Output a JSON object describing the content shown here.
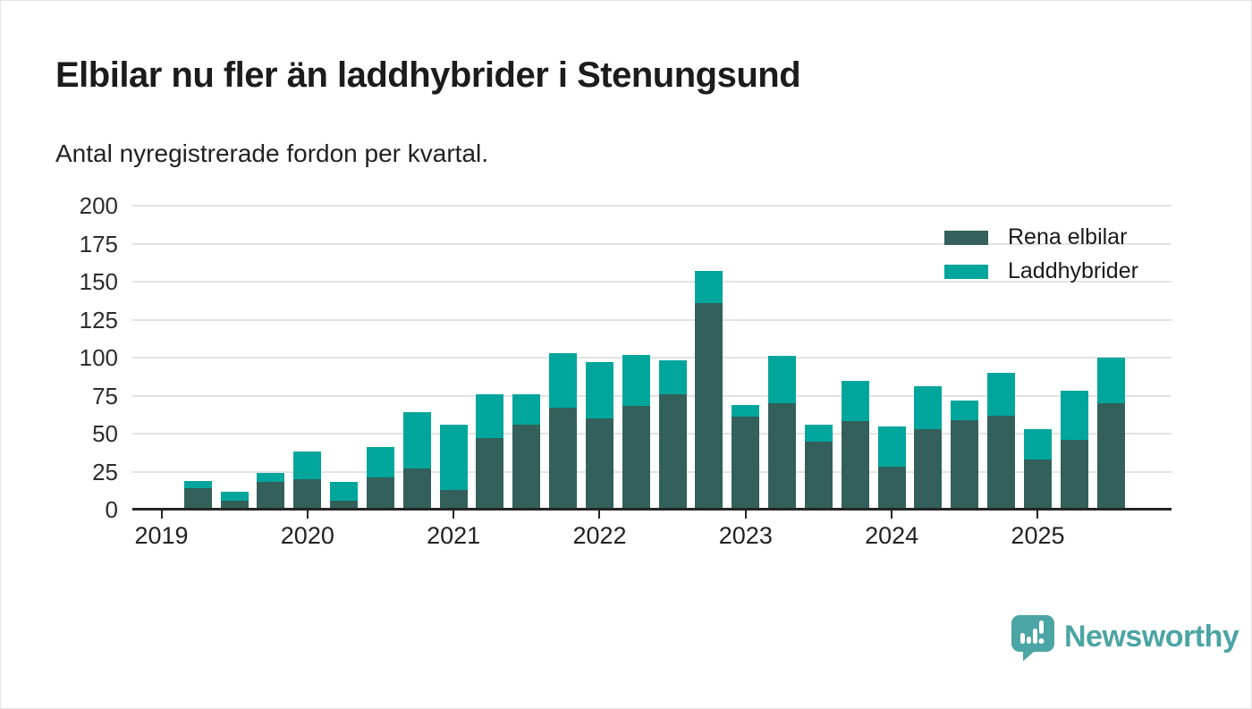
{
  "header": {
    "title": "Elbilar nu fler än laddhybrider i Stenungsund",
    "subtitle": "Antal nyregistrerade fordon per kvartal."
  },
  "colors": {
    "rena_elbilar": "#33605a",
    "laddhybrider": "#00a69b",
    "gridline": "#e3e3e3",
    "axis": "#262626",
    "text": "#1c1c1c",
    "brand_teal": "#4ba5a4",
    "background": "#ffffff"
  },
  "chart_data": {
    "type": "bar",
    "stacked": true,
    "title": "Elbilar nu fler än laddhybrider i Stenungsund",
    "subtitle": "Antal nyregistrerade fordon per kvartal.",
    "xlabel": "",
    "ylabel": "",
    "ylim": [
      0,
      200
    ],
    "yticks": [
      0,
      25,
      50,
      75,
      100,
      125,
      150,
      175,
      200
    ],
    "xticks": [
      "2019",
      "2020",
      "2021",
      "2022",
      "2023",
      "2024",
      "2025"
    ],
    "grid": "horizontal",
    "legend_position": "top-right",
    "x": [
      "2019-Q2",
      "2019-Q3",
      "2019-Q4",
      "2020-Q1",
      "2020-Q2",
      "2020-Q3",
      "2020-Q4",
      "2021-Q1",
      "2021-Q2",
      "2021-Q3",
      "2021-Q4",
      "2022-Q1",
      "2022-Q2",
      "2022-Q3",
      "2022-Q4",
      "2023-Q1",
      "2023-Q2",
      "2023-Q3",
      "2023-Q4",
      "2024-Q1",
      "2024-Q2",
      "2024-Q3",
      "2024-Q4",
      "2025-Q1",
      "2025-Q2",
      "2025-Q3"
    ],
    "series": [
      {
        "name": "Rena elbilar",
        "color": "#33605a",
        "values": [
          14,
          6,
          18,
          20,
          6,
          21,
          27,
          13,
          47,
          56,
          67,
          60,
          68,
          76,
          136,
          61,
          70,
          45,
          58,
          28,
          53,
          59,
          62,
          33,
          46,
          70
        ]
      },
      {
        "name": "Laddhybrider",
        "color": "#00a69b",
        "values": [
          5,
          6,
          6,
          18,
          12,
          20,
          37,
          43,
          29,
          20,
          36,
          37,
          34,
          22,
          21,
          8,
          31,
          11,
          27,
          27,
          28,
          13,
          28,
          20,
          32,
          30
        ]
      }
    ]
  },
  "branding": {
    "name": "Newsworthy",
    "icon": "newsworthy-speech-bubble-chart-icon"
  }
}
